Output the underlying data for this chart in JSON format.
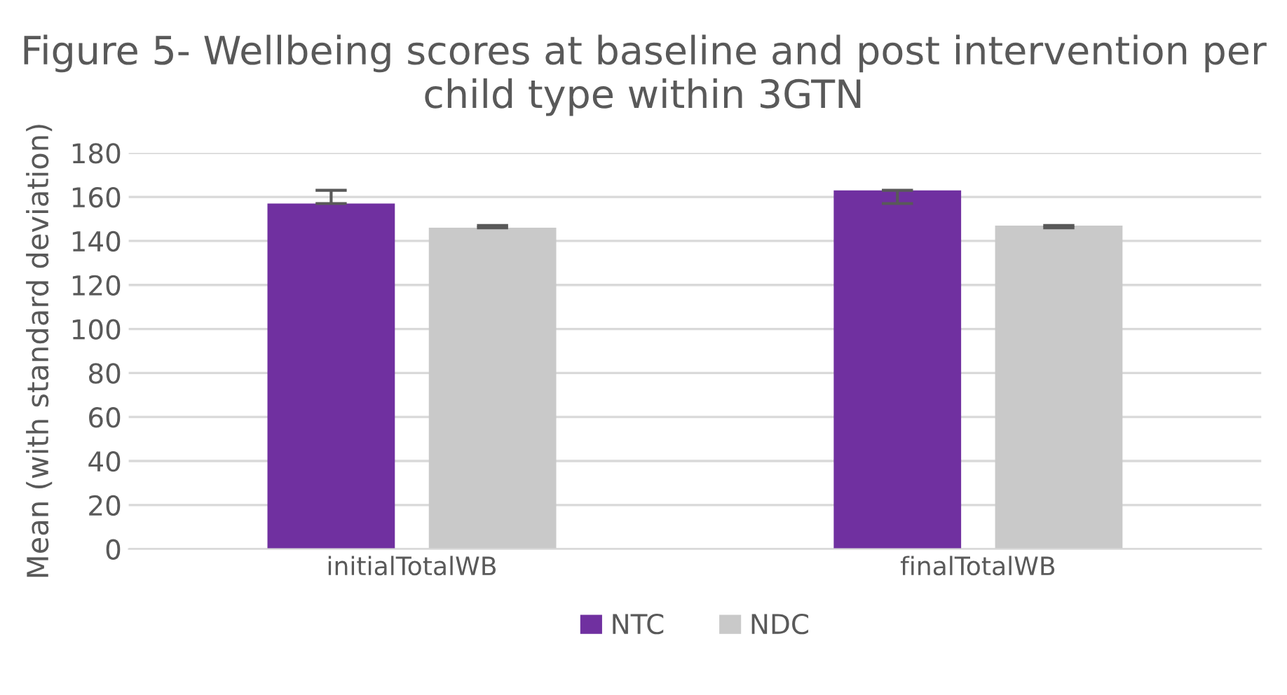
{
  "chart_data": {
    "type": "bar",
    "title": "Figure 5- Wellbeing scores at baseline and post intervention per child type within 3GTN",
    "ylabel": "Mean (with standard deviation)",
    "categories": [
      "initialTotalWB",
      "finalTotalWB"
    ],
    "series": [
      {
        "name": "NTC",
        "color": "#7030a0",
        "values": [
          157,
          163
        ],
        "errors": [
          [
            157,
            163
          ],
          [
            157,
            163
          ]
        ]
      },
      {
        "name": "NDC",
        "color": "#c9c9c9",
        "values": [
          146,
          147
        ],
        "errors": [
          [
            146,
            147
          ],
          [
            146,
            147
          ]
        ]
      }
    ],
    "ylim": [
      0,
      180
    ],
    "yticks": [
      0,
      20,
      40,
      60,
      80,
      100,
      120,
      140,
      160,
      180
    ],
    "grid": "y",
    "legend": "bottom"
  }
}
